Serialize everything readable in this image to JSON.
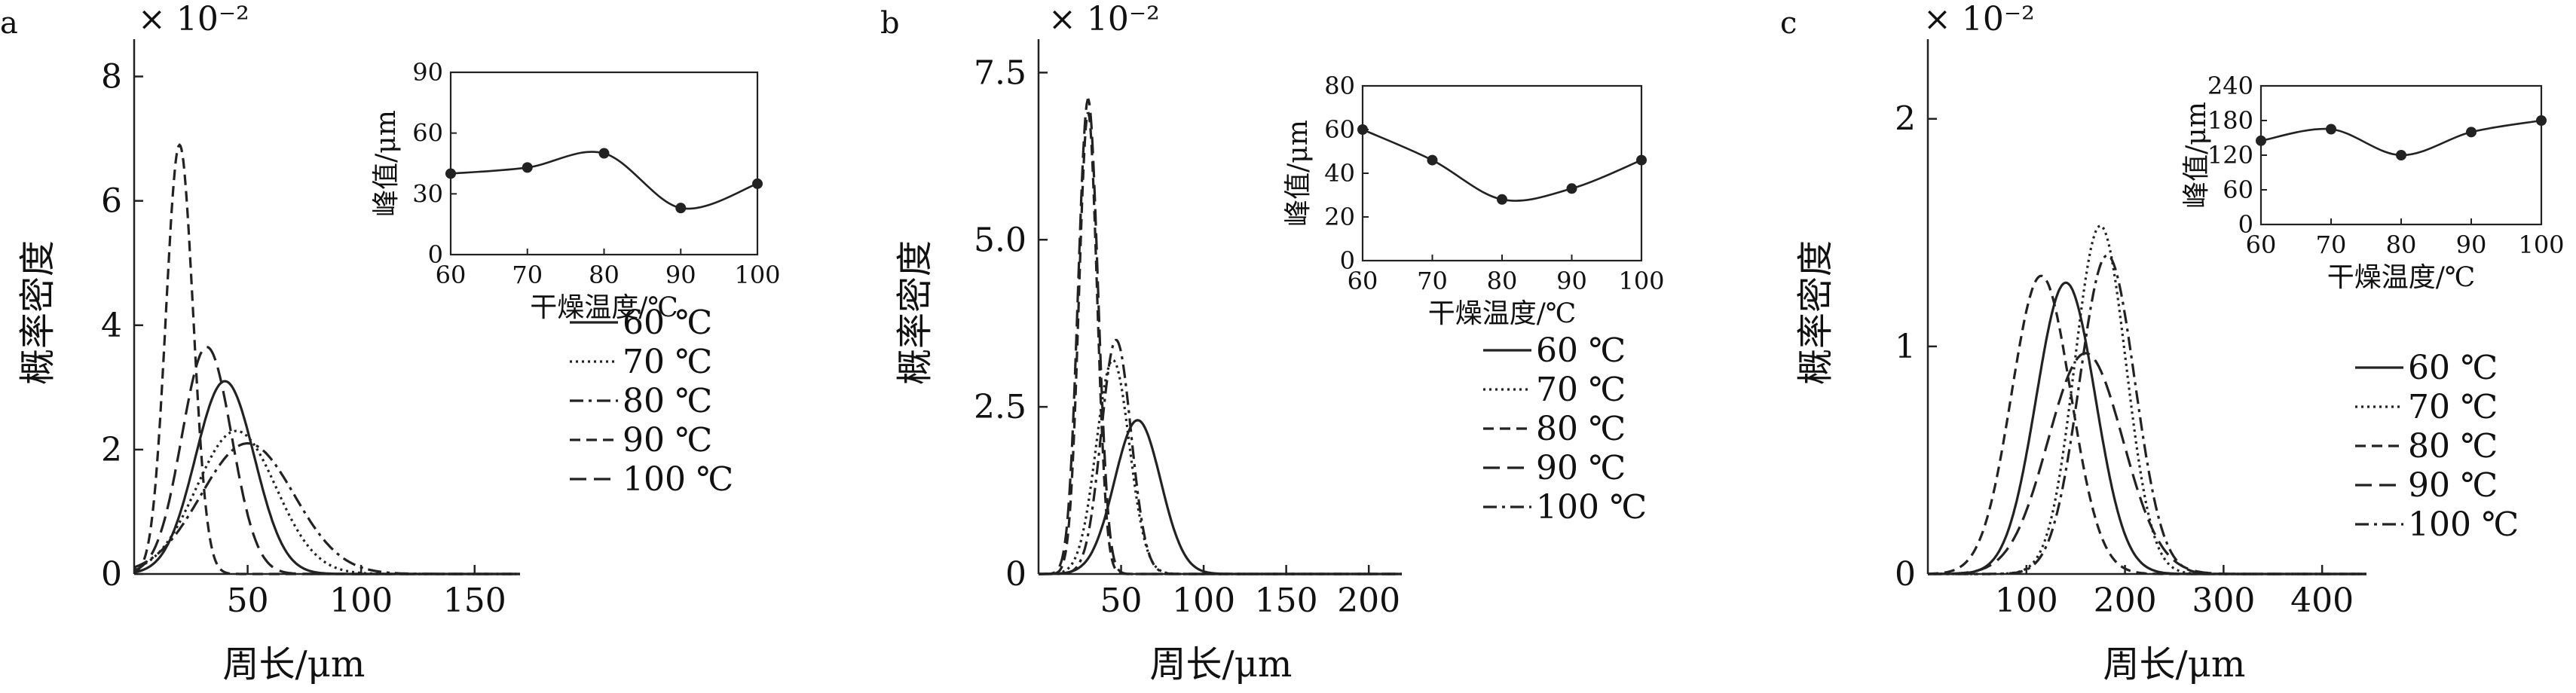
{
  "chart_data": [
    {
      "panel": "a",
      "type": "line",
      "scale_label": "× 10⁻²",
      "xlabel": "周长/μm",
      "ylabel": "概率密度",
      "xlim": [
        0,
        170
      ],
      "ylim": [
        0,
        8.6
      ],
      "xticks": [
        50,
        100,
        150
      ],
      "yticks": [
        0,
        2,
        4,
        6,
        8
      ],
      "legend": "right",
      "series": [
        {
          "name": "60 ℃",
          "style": "solid",
          "mu": 40,
          "sigma": 13.0,
          "peak": 3.1
        },
        {
          "name": "70 ℃",
          "style": "dotted",
          "mu": 45,
          "sigma": 17.5,
          "peak": 2.3
        },
        {
          "name": "80 ℃",
          "style": "dashdot",
          "mu": 50,
          "sigma": 20.5,
          "peak": 2.1
        },
        {
          "name": "90 ℃",
          "style": "dashed",
          "mu": 20,
          "sigma": 6.0,
          "peak": 6.9
        },
        {
          "name": "100 ℃",
          "style": "longdash",
          "mu": 32,
          "sigma": 11.0,
          "peak": 3.65
        }
      ],
      "inset": {
        "type": "line",
        "xlabel": "干燥温度/℃",
        "ylabel": "峰值/μm",
        "xlim": [
          60,
          100
        ],
        "ylim": [
          0,
          90
        ],
        "xticks": [
          60,
          70,
          80,
          90,
          100
        ],
        "yticks": [
          0,
          30,
          60,
          90
        ],
        "x": [
          60,
          70,
          80,
          90,
          100
        ],
        "y": [
          40,
          43,
          50,
          23,
          35
        ]
      }
    },
    {
      "panel": "b",
      "type": "line",
      "scale_label": "× 10⁻²",
      "xlabel": "周长/μm",
      "ylabel": "概率密度",
      "xlim": [
        0,
        220
      ],
      "ylim": [
        0,
        8.0
      ],
      "xticks": [
        50,
        100,
        150,
        200
      ],
      "yticks": [
        0,
        2.5,
        5.0,
        7.5
      ],
      "ytick_labels": [
        "0",
        "2.5",
        "5.0",
        "7.5"
      ],
      "legend": "right",
      "series": [
        {
          "name": "60 ℃",
          "style": "solid",
          "mu": 60,
          "sigma": 14.0,
          "peak": 2.3
        },
        {
          "name": "70 ℃",
          "style": "dotted",
          "mu": 45,
          "sigma": 10.0,
          "peak": 3.2
        },
        {
          "name": "80 ℃",
          "style": "dashed",
          "mu": 30,
          "sigma": 5.5,
          "peak": 6.9
        },
        {
          "name": "90 ℃",
          "style": "longdash",
          "mu": 30,
          "sigma": 6.0,
          "peak": 7.1
        },
        {
          "name": "100 ℃",
          "style": "dashdot",
          "mu": 47,
          "sigma": 9.0,
          "peak": 3.5
        }
      ],
      "inset": {
        "type": "line",
        "xlabel": "干燥温度/℃",
        "ylabel": "峰值/μm",
        "xlim": [
          60,
          100
        ],
        "ylim": [
          0,
          80
        ],
        "xticks": [
          60,
          70,
          80,
          90,
          100
        ],
        "yticks": [
          0,
          20,
          40,
          60,
          80
        ],
        "x": [
          60,
          70,
          80,
          90,
          100
        ],
        "y": [
          60,
          46,
          28,
          33,
          46
        ]
      }
    },
    {
      "panel": "c",
      "type": "line",
      "scale_label": "× 10⁻²",
      "xlabel": "周长/μm",
      "ylabel": "概率密度",
      "xlim": [
        0,
        445
      ],
      "ylim": [
        0,
        2.35
      ],
      "xticks": [
        100,
        200,
        300,
        400
      ],
      "yticks": [
        0,
        1,
        2
      ],
      "legend": "right",
      "series": [
        {
          "name": "60 ℃",
          "style": "solid",
          "mu": 140,
          "sigma": 30.0,
          "peak": 1.28
        },
        {
          "name": "70 ℃",
          "style": "dotted",
          "mu": 175,
          "sigma": 26.0,
          "peak": 1.53
        },
        {
          "name": "80 ℃",
          "style": "dashed",
          "mu": 115,
          "sigma": 30.0,
          "peak": 1.31
        },
        {
          "name": "90 ℃",
          "style": "longdash",
          "mu": 160,
          "sigma": 38.0,
          "peak": 0.97
        },
        {
          "name": "100 ℃",
          "style": "dashdot",
          "mu": 182,
          "sigma": 28.0,
          "peak": 1.4
        }
      ],
      "inset": {
        "type": "line",
        "xlabel": "干燥温度/℃",
        "ylabel": "峰值/μm",
        "xlim": [
          60,
          100
        ],
        "ylim": [
          0,
          240
        ],
        "xticks": [
          60,
          70,
          80,
          90,
          100
        ],
        "yticks": [
          0,
          60,
          120,
          180,
          240
        ],
        "x": [
          60,
          70,
          80,
          90,
          100
        ],
        "y": [
          145,
          165,
          120,
          160,
          180
        ]
      }
    }
  ]
}
